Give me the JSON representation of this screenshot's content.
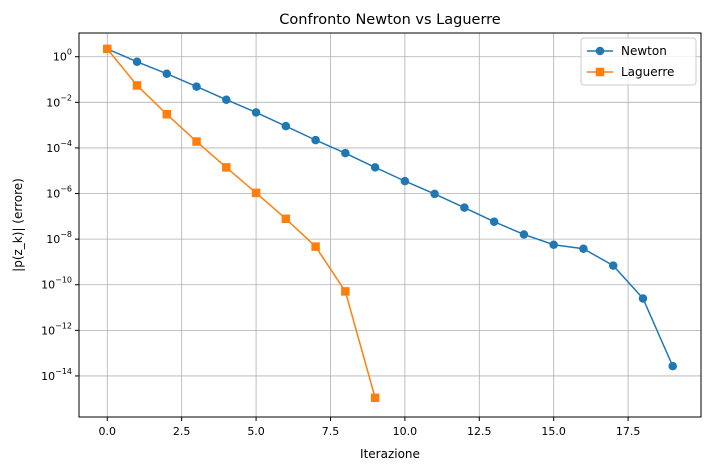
{
  "chart_data": {
    "type": "line",
    "title": "Confronto Newton vs Laguerre",
    "xlabel": "Iterazione",
    "ylabel": "|p(z_k)| (errore)",
    "yscale": "log",
    "xlim": [
      -0.95,
      19.95
    ],
    "ylim_exponent": [
      -15.8,
      1.04
    ],
    "xticks": [
      0.0,
      2.5,
      5.0,
      7.5,
      10.0,
      12.5,
      15.0,
      17.5
    ],
    "xtick_labels": [
      "0.0",
      "2.5",
      "5.0",
      "7.5",
      "10.0",
      "12.5",
      "15.0",
      "17.5"
    ],
    "yticks_exponent": [
      0,
      -2,
      -4,
      -6,
      -8,
      -10,
      -12,
      -14
    ],
    "grid": true,
    "legend_position": "top-right",
    "series": [
      {
        "name": "Newton",
        "color": "#1f77b4",
        "marker": "circle",
        "x": [
          0,
          1,
          2,
          3,
          4,
          5,
          6,
          7,
          8,
          9,
          10,
          11,
          12,
          13,
          14,
          15,
          16,
          17,
          18,
          19
        ],
        "y": [
          2.2,
          0.6,
          0.18,
          0.049,
          0.013,
          0.0036,
          0.0009,
          0.00022,
          5.9e-05,
          1.4e-05,
          3.5e-06,
          9.6e-07,
          2.4e-07,
          5.8e-08,
          1.6e-08,
          5.7e-09,
          3.8e-09,
          6.9e-10,
          2.5e-11,
          2.7e-14
        ]
      },
      {
        "name": "Laguerre",
        "color": "#ff7f0e",
        "marker": "square",
        "x": [
          0,
          1,
          2,
          3,
          4,
          5,
          6,
          7,
          8,
          9
        ],
        "y": [
          2.2,
          0.055,
          0.003,
          0.00019,
          1.4e-05,
          1.07e-06,
          7.8e-08,
          4.7e-09,
          5.1e-11,
          1.1e-15
        ]
      }
    ]
  }
}
